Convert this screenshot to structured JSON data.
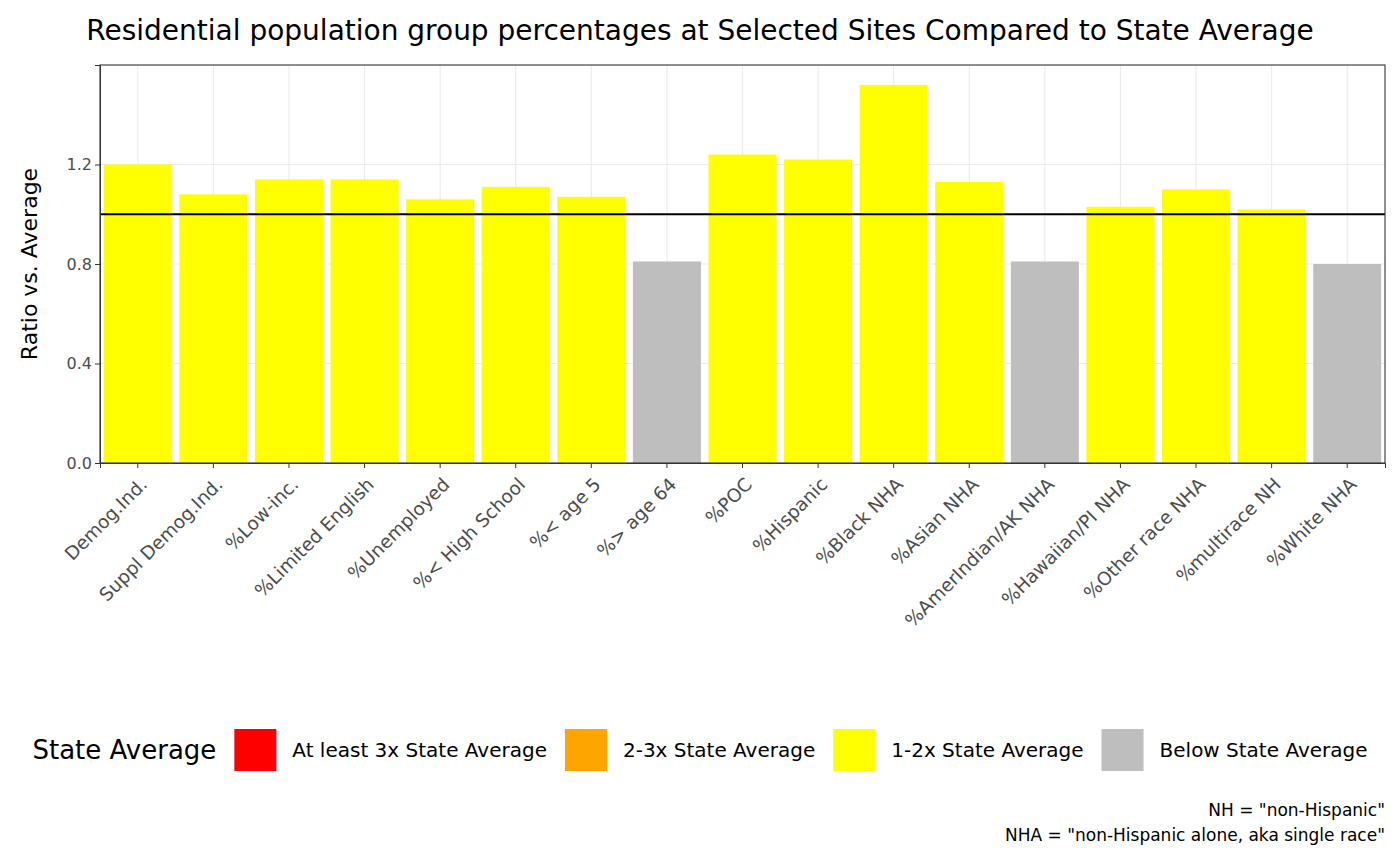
{
  "chart_data": {
    "type": "bar",
    "title": "Residential population group percentages at Selected Sites Compared to State Average",
    "y_label": "Ratio vs. Average",
    "categories": [
      "Demog.Ind.",
      "Suppl Demog.Ind.",
      "%Low-inc.",
      "%Limited English",
      "%Unemployed",
      "%< High School",
      "%< age 5",
      "%> age 64",
      "%POC",
      "%Hispanic",
      "%Black NHA",
      "%Asian NHA",
      "%AmerIndian/AK NHA",
      "%Hawaiian/PI NHA",
      "%Other race NHA",
      "%multirace NH",
      "%White NHA"
    ],
    "values": [
      1.2,
      1.08,
      1.14,
      1.14,
      1.06,
      1.11,
      1.07,
      0.81,
      1.24,
      1.22,
      1.52,
      1.13,
      0.81,
      1.03,
      1.1,
      1.02,
      0.8
    ],
    "colors": [
      "#ffff00",
      "#ffff00",
      "#ffff00",
      "#ffff00",
      "#ffff00",
      "#ffff00",
      "#ffff00",
      "#bebebe",
      "#ffff00",
      "#ffff00",
      "#ffff00",
      "#ffff00",
      "#bebebe",
      "#ffff00",
      "#ffff00",
      "#ffff00",
      "#bebebe"
    ],
    "reference_line": 1,
    "ylim": [
      0,
      1.6
    ],
    "yticks": [
      {
        "value": 0,
        "label": "0.0"
      },
      0.4,
      0.8,
      1.2
    ],
    "grid": true,
    "legend": "bottom",
    "legend_title": "State Average",
    "legend_items": [
      {
        "label": "At least 3x State Average",
        "color": "#ff0000"
      },
      {
        "label": "2-3x State Average",
        "color": "#ffa500"
      },
      {
        "label": "1-2x State Average",
        "color": "#ffff00"
      },
      {
        "label": "Below State Average",
        "color": "#bebebe"
      }
    ],
    "caption": [
      "NH = \"non-Hispanic\"",
      "NHA = \"non-Hispanic alone, aka single race\""
    ]
  }
}
